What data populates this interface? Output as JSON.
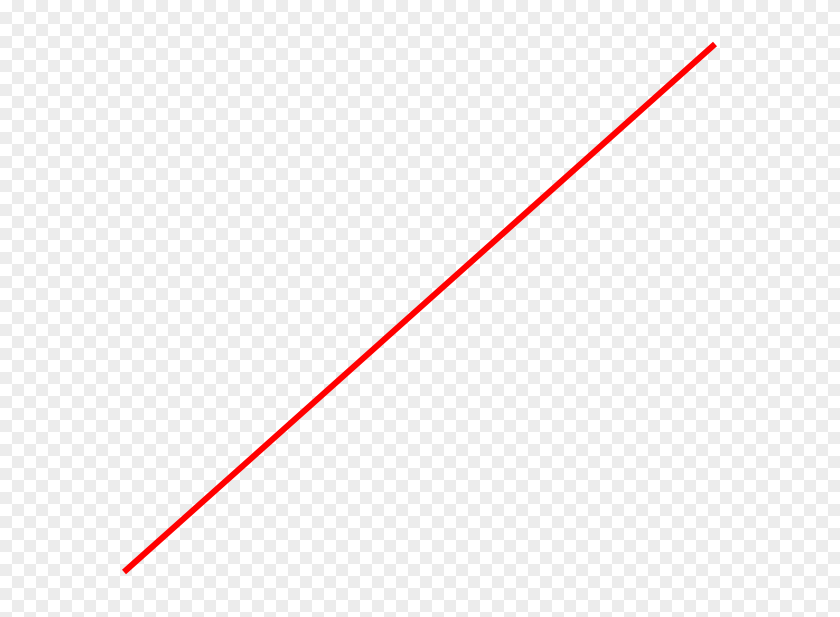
{
  "canvas": {
    "background": "transparency-checkerboard",
    "checker_color": "#ececec"
  },
  "line": {
    "color": "#ff0000"
  }
}
